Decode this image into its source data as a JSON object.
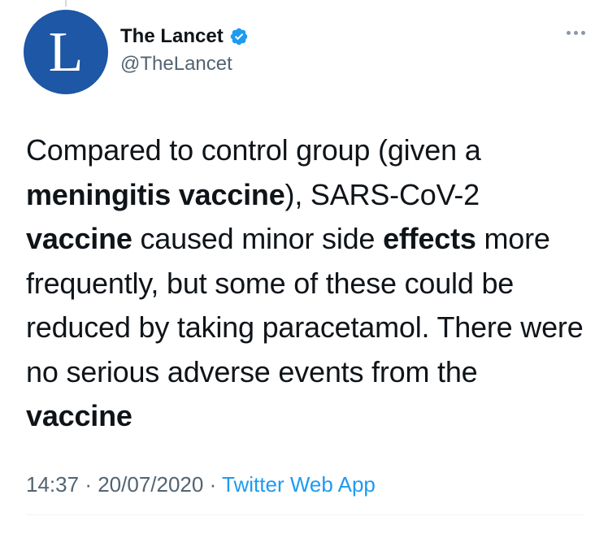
{
  "tweet": {
    "author": {
      "name": "The Lancet",
      "handle": "@TheLancet",
      "avatar_letter": "L",
      "verified": true,
      "avatar_color": "#1d57a5",
      "verified_color": "#1d9bf0"
    },
    "text": {
      "seg1": "Compared to control group (given a ",
      "seg2": "meningitis vaccine",
      "seg3": "), SARS-CoV-2 ",
      "seg4": "vaccine",
      "seg5": " caused minor side ",
      "seg6": "effects",
      "seg7": " more frequently, but some of these could be reduced by taking paracetamol. There were no serious adverse events from the ",
      "seg8": "vaccine"
    },
    "time": "14:37",
    "separator": "·",
    "date": "20/07/2020",
    "source": "Twitter Web App",
    "more_icon": "more-horizontal-icon"
  }
}
